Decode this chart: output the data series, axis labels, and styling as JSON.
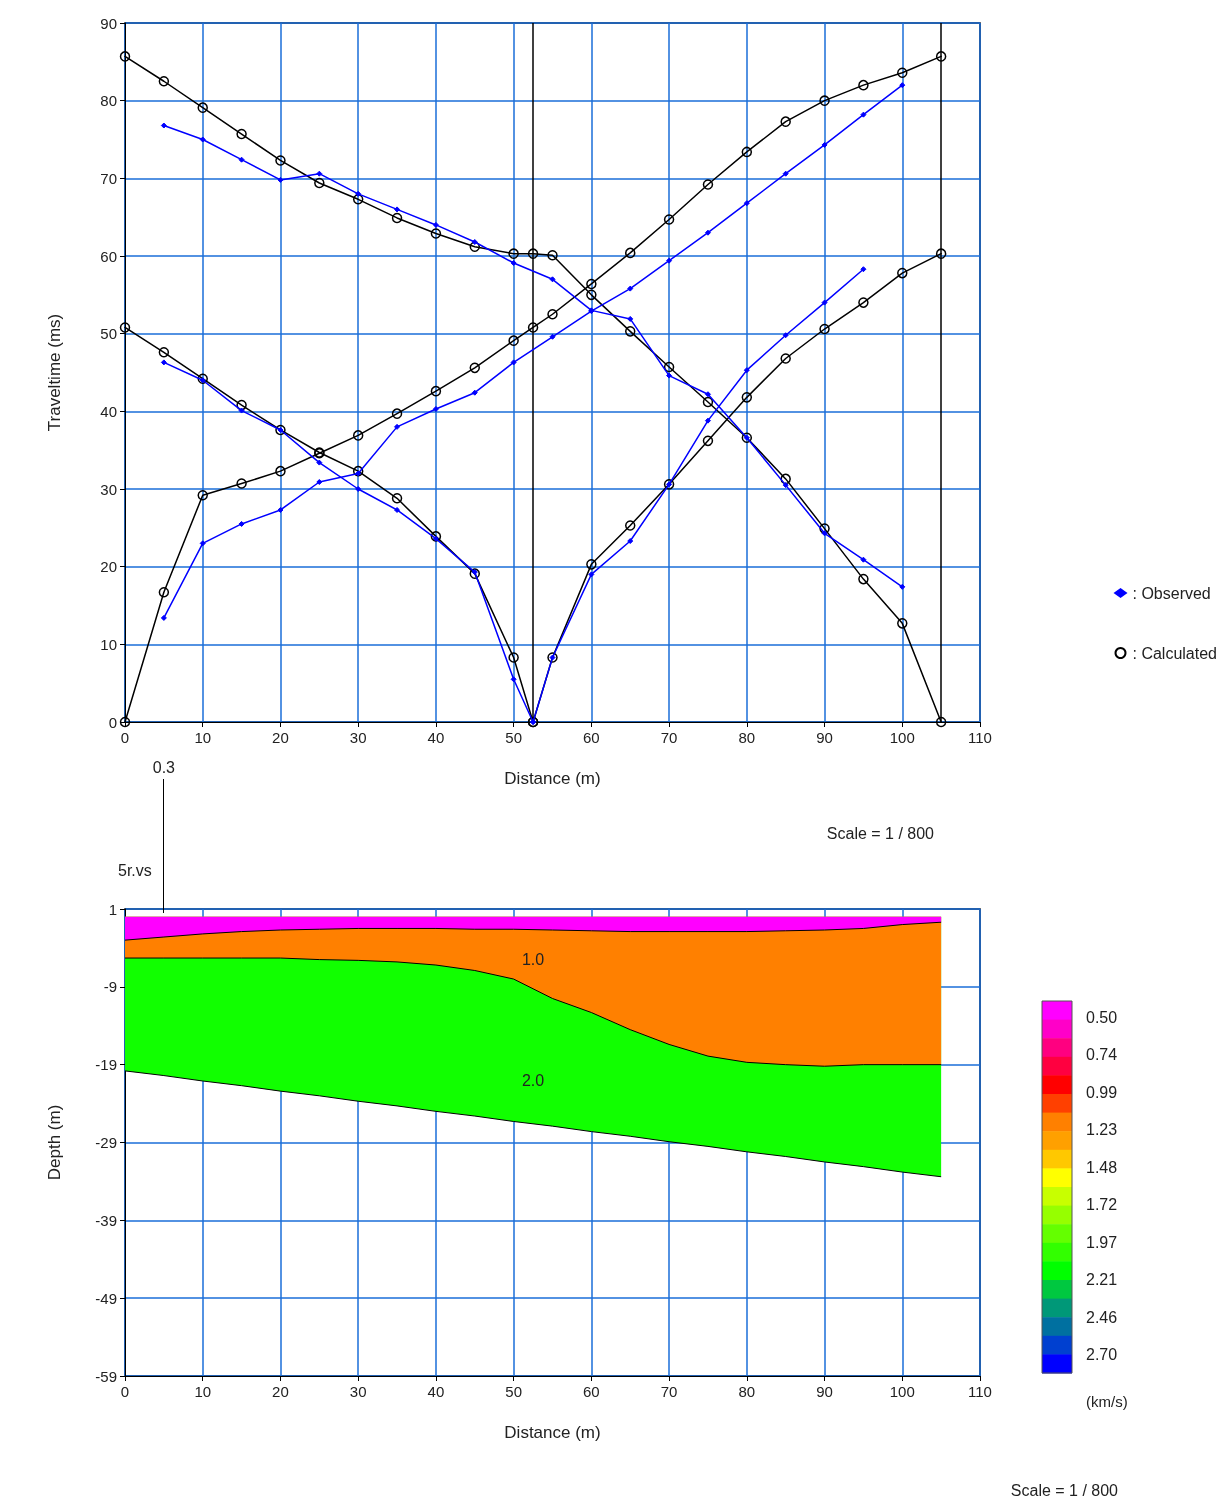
{
  "chart_data": [
    {
      "type": "line",
      "xlabel": "Distance (m)",
      "ylabel": "Traveltime (ms)",
      "xlim": [
        0,
        110
      ],
      "ylim": [
        0,
        90
      ],
      "xticks": [
        0,
        10,
        20,
        30,
        40,
        50,
        60,
        70,
        80,
        90,
        100,
        110
      ],
      "yticks": [
        0,
        10,
        20,
        30,
        40,
        50,
        60,
        70,
        80,
        90
      ],
      "grid": true,
      "legend": "right",
      "line_style": "solid",
      "annotations": [
        "Scale = 1 / 800"
      ],
      "ref_lines": [
        {
          "axis": "x",
          "value": 52.5,
          "color": "#000000"
        },
        {
          "axis": "x",
          "value": 105,
          "color": "#000000"
        }
      ],
      "series": [
        {
          "name": ": Observed",
          "color": "#0000ff",
          "marker": "diamond",
          "x": [
            5,
            10,
            15,
            20,
            25,
            30,
            35,
            40,
            45,
            50,
            55,
            60,
            65,
            70,
            75,
            80,
            85,
            90,
            95,
            100
          ],
          "values": [
            13.4,
            23,
            25.5,
            27.3,
            30.9,
            32,
            38,
            40.3,
            42.4,
            46.3,
            49.6,
            52.9,
            55.8,
            59.4,
            63,
            66.8,
            70.6,
            74.3,
            78.2,
            82
          ]
        },
        {
          "color": "#0000ff",
          "marker": "diamond",
          "x": [
            5,
            10,
            15,
            20,
            25,
            30,
            35,
            40,
            45,
            50,
            55,
            60,
            65,
            70,
            75,
            80,
            85,
            90,
            95,
            100
          ],
          "values": [
            76.8,
            75,
            72.4,
            69.8,
            70.6,
            68,
            66,
            64,
            61.8,
            59.1,
            57,
            53,
            51.9,
            44.6,
            42.2,
            36.6,
            30.5,
            24.3,
            20.9,
            17.4
          ]
        },
        {
          "color": "#0000ff",
          "marker": "diamond",
          "x": [
            5,
            10,
            15,
            20,
            25,
            30,
            35,
            40,
            45,
            50,
            52.5
          ],
          "values": [
            46.3,
            44,
            40.1,
            37.6,
            33.4,
            30,
            27.3,
            23.6,
            19.3,
            5.5,
            0
          ]
        },
        {
          "color": "#0000ff",
          "marker": "diamond",
          "x": [
            52.5,
            55,
            60,
            65,
            70,
            75,
            80,
            85,
            90,
            95
          ],
          "values": [
            0,
            8.3,
            19,
            23.3,
            30.6,
            38.8,
            45.3,
            49.8,
            54,
            58.3
          ]
        },
        {
          "name": ": Calculated",
          "color": "#000000",
          "marker": "circle",
          "x": [
            0,
            5,
            10,
            15,
            20,
            25,
            30,
            35,
            40,
            45,
            50,
            52.5,
            55,
            60,
            65,
            70,
            75,
            80,
            85,
            90,
            95,
            100,
            105
          ],
          "values": [
            0,
            16.7,
            29.2,
            30.7,
            32.3,
            34.6,
            36.9,
            39.7,
            42.6,
            45.6,
            49.1,
            50.8,
            52.5,
            56.4,
            60.4,
            64.7,
            69.2,
            73.4,
            77.3,
            80,
            82,
            83.6,
            85.7
          ]
        },
        {
          "color": "#000000",
          "marker": "circle",
          "x": [
            0,
            5,
            10,
            15,
            20,
            25,
            30,
            35,
            40,
            45,
            50,
            52.5,
            55,
            60,
            65,
            70,
            75,
            80,
            85,
            90,
            95,
            100,
            105
          ],
          "values": [
            85.7,
            82.5,
            79.1,
            75.7,
            72.3,
            69.4,
            67.3,
            64.9,
            62.9,
            61.2,
            60.3,
            60.3,
            60.1,
            55,
            50.3,
            45.7,
            41.2,
            36.6,
            31.3,
            24.9,
            18.4,
            12.7,
            0
          ]
        },
        {
          "color": "#000000",
          "marker": "circle",
          "x": [
            0,
            5,
            10,
            15,
            20,
            25,
            30,
            35,
            40,
            45,
            50,
            52.5
          ],
          "values": [
            50.8,
            47.6,
            44.2,
            40.8,
            37.6,
            34.7,
            32.3,
            28.8,
            23.9,
            19.1,
            8.3,
            0
          ]
        },
        {
          "color": "#000000",
          "marker": "circle",
          "x": [
            52.5,
            55,
            60,
            65,
            70,
            75,
            80,
            85,
            90,
            95,
            100,
            105
          ],
          "values": [
            0,
            8.3,
            20.3,
            25.3,
            30.6,
            36.2,
            41.8,
            46.8,
            50.6,
            54,
            57.8,
            60.3
          ]
        }
      ]
    },
    {
      "type": "area",
      "xlabel": "Distance (m)",
      "ylabel": "Depth (m)",
      "clabel": "(km/s)",
      "xlim": [
        0,
        110
      ],
      "ylim": [
        -59,
        1
      ],
      "xticks": [
        0,
        10,
        20,
        30,
        40,
        50,
        60,
        70,
        80,
        90,
        100,
        110
      ],
      "yticks": [
        1,
        -9,
        -19,
        -29,
        -39,
        -49,
        -59
      ],
      "clim": [
        0.39,
        2.82
      ],
      "cticks": [
        {
          "value": 0.5,
          "label": "0.50"
        },
        0.74,
        0.99,
        1.23,
        1.48,
        1.72,
        1.97,
        2.21,
        2.46,
        {
          "value": 2.7,
          "label": "2.70"
        }
      ],
      "grid": true,
      "annotations": [
        "5r.vs",
        {
          "text": "0.3",
          "x": 5,
          "y": 0.5
        },
        "1.0",
        "2.0",
        "Scale = 1 / 800"
      ],
      "x": [
        0,
        5,
        10,
        15,
        20,
        25,
        30,
        35,
        40,
        45,
        50,
        55,
        60,
        65,
        70,
        75,
        80,
        85,
        90,
        95,
        100,
        105
      ],
      "series": [
        {
          "color": "#ff00ff",
          "values": [
            -3,
            -2.6,
            -2.2,
            -1.9,
            -1.7,
            -1.6,
            -1.5,
            -1.5,
            -1.5,
            -1.6,
            -1.6,
            -1.7,
            -1.8,
            -1.9,
            -1.9,
            -1.9,
            -1.9,
            -1.8,
            -1.7,
            -1.5,
            -1,
            -0.7
          ]
        },
        {
          "color": "#ff8000",
          "values": [
            -5.3,
            -5.3,
            -5.3,
            -5.3,
            -5.3,
            -5.5,
            -5.6,
            -5.8,
            -6.2,
            -6.9,
            -8,
            -10.5,
            -12.3,
            -14.5,
            -16.4,
            -17.9,
            -18.7,
            -19,
            -19.2,
            -19,
            -19,
            -19
          ]
        },
        {
          "color": "#11ff00",
          "values": [
            -19.8,
            -20.4,
            -21.1,
            -21.7,
            -22.4,
            -23,
            -23.7,
            -24.3,
            -25,
            -25.6,
            -26.3,
            -26.9,
            -27.6,
            -28.2,
            -28.9,
            -29.5,
            -30.2,
            -30.8,
            -31.5,
            -32.1,
            -32.8,
            -33.4
          ]
        }
      ]
    }
  ]
}
